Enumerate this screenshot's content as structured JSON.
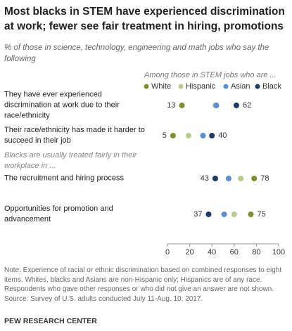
{
  "chart_data": {
    "type": "dot",
    "title": "Most blacks in STEM have experienced discrimination at work; fewer see fair treatment in hiring, promotions",
    "subtitle": "% of those in science, technology, engineering and math jobs who say the following",
    "legend_title": "Among those in STEM jobs who are ...",
    "categories": [
      "They have ever experienced discrimination at work due to their race/ethnicity",
      "Their race/ethnicity has made it harder to succeed in their job",
      "The recruitment and hiring process",
      "Opportunities for promotion and advancement"
    ],
    "group_label": "Blacks are usually treated fairly in their workplace in ...",
    "series": [
      {
        "name": "White",
        "color": "#7d8f2e",
        "data_labels": true,
        "values": [
          13,
          5,
          78,
          75
        ]
      },
      {
        "name": "Hispanic",
        "color": "#b8cb8c",
        "data_labels": false,
        "values": [
          43,
          19,
          66,
          60
        ]
      },
      {
        "name": "Asian",
        "color": "#5a8fd6",
        "data_labels": false,
        "values": [
          44,
          32,
          55,
          51
        ]
      },
      {
        "name": "Black",
        "color": "#1d3a63",
        "data_labels": true,
        "values": [
          62,
          40,
          43,
          37
        ]
      }
    ],
    "xlim": [
      0,
      100
    ],
    "xticks": [
      0,
      20,
      40,
      60,
      80,
      100
    ],
    "note": "Note: Experience of racial or ethnic discrimination based on combined responses to eight items. Whites, blacks and Asians are non-Hispanic only; Hispanics are of any race. Respondents who gave other responses or who did not give an answer are not shown.",
    "source": "Source: Survey of U.S. adults conducted July 11-Aug. 10, 2017.",
    "credit": "PEW RESEARCH CENTER"
  }
}
